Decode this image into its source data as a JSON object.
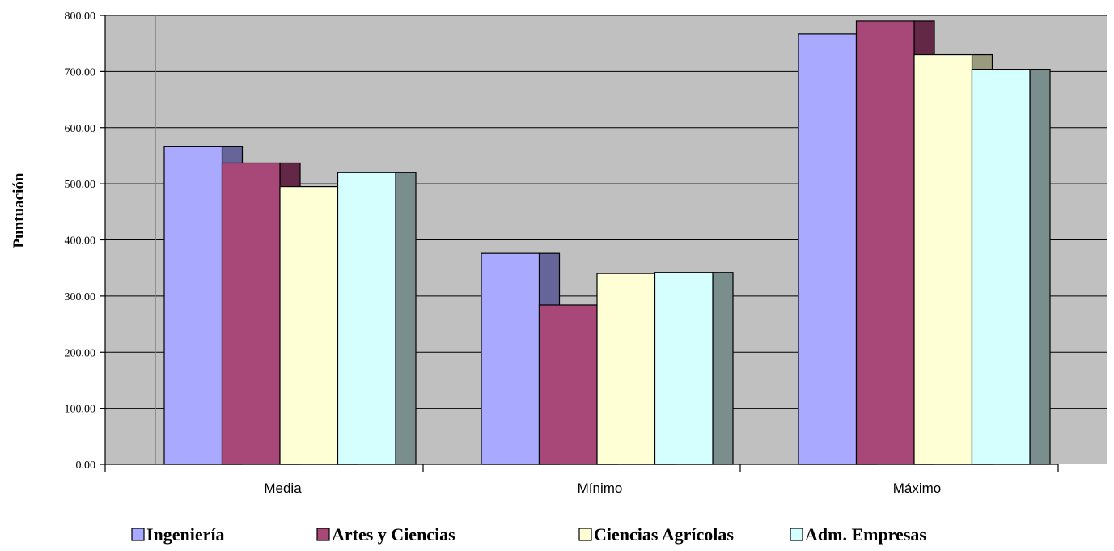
{
  "chart_data": {
    "type": "bar",
    "title": "",
    "xlabel": "",
    "ylabel": "Puntuación",
    "ylim": [
      0,
      800
    ],
    "y_ticks": [
      "0.00",
      "100.00",
      "200.00",
      "300.00",
      "400.00",
      "500.00",
      "600.00",
      "700.00",
      "800.00"
    ],
    "grid": true,
    "legend_position": "bottom",
    "categories": [
      "Media",
      "Mínimo",
      "Máximo"
    ],
    "series": [
      {
        "name": "Ingeniería",
        "values": [
          566,
          376,
          767
        ],
        "color": "#a9a9ff",
        "side_color": "#65659a"
      },
      {
        "name": "Artes y Ciencias",
        "values": [
          537,
          284,
          790
        ],
        "color": "#a84878",
        "side_color": "#632845"
      },
      {
        "name": "Ciencias Agrícolas",
        "values": [
          495,
          340,
          730
        ],
        "color": "#ffffd5",
        "side_color": "#9a9a7e"
      },
      {
        "name": "Adm. Empresas",
        "values": [
          520,
          342,
          704
        ],
        "color": "#d5ffff",
        "side_color": "#7a8e8e"
      }
    ]
  }
}
